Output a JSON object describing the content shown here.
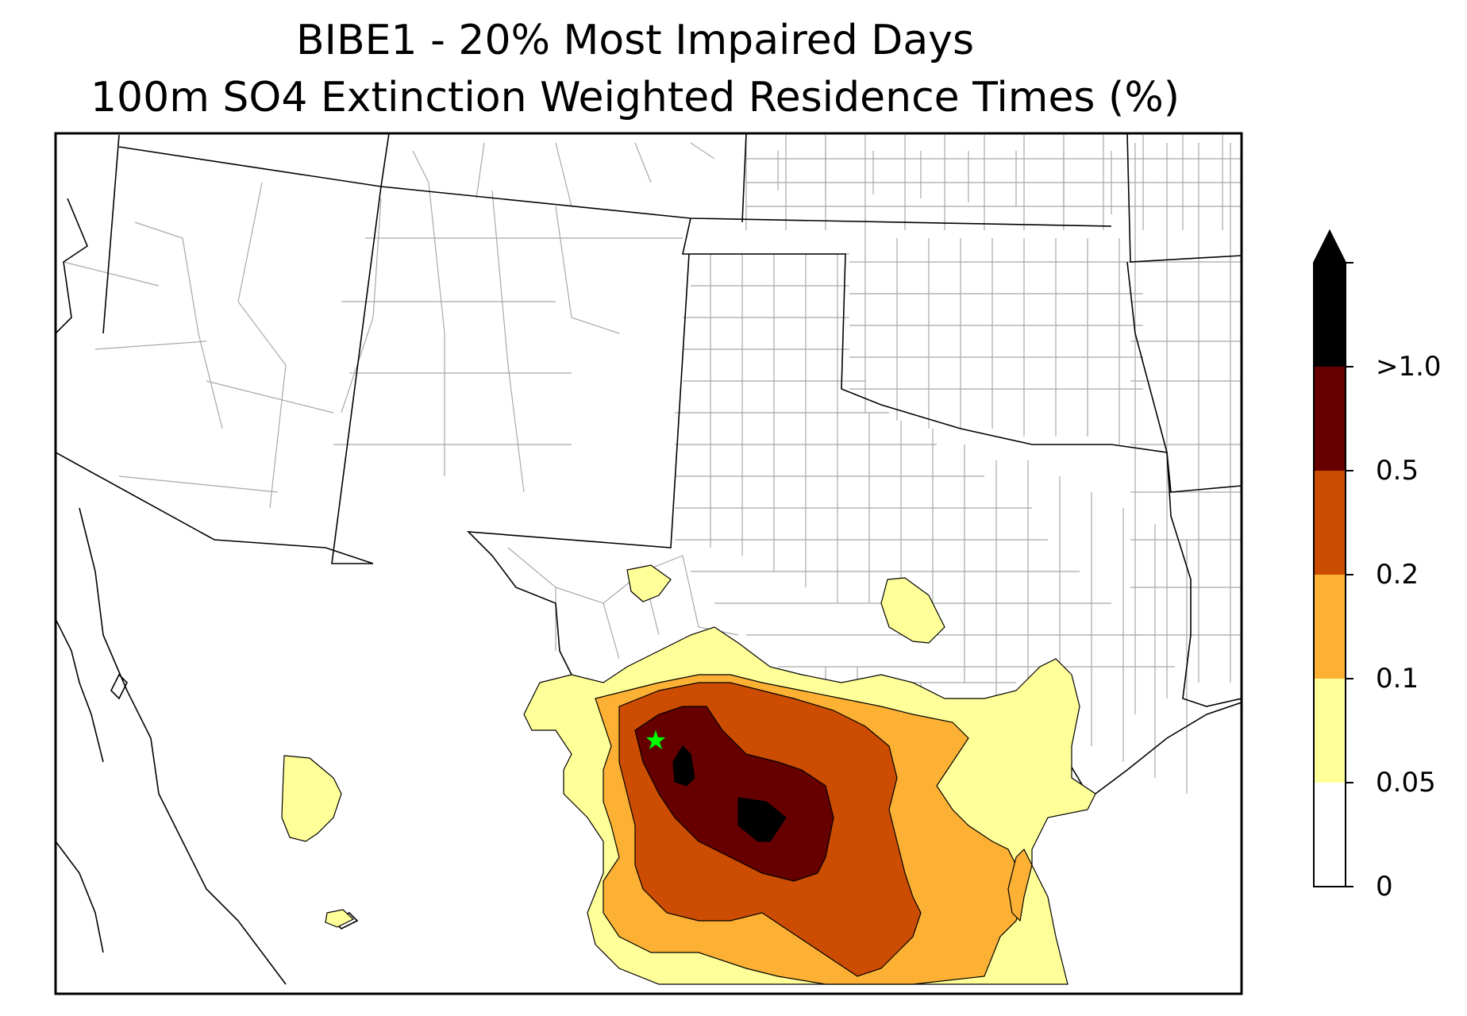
{
  "title": {
    "line1": "BIBE1 - 20% Most Impaired Days",
    "line2": "100m SO4 Extinction Weighted Residence Times (%)"
  },
  "colorbar": {
    "levels": [
      {
        "label": "0",
        "value": 0,
        "color": "#ffffff"
      },
      {
        "label": "0.05",
        "value": 0.05,
        "color": "#ffff99"
      },
      {
        "label": "0.1",
        "value": 0.1,
        "color": "#fcb135"
      },
      {
        "label": "0.2",
        "value": 0.2,
        "color": "#cc4c02"
      },
      {
        "label": "0.5",
        "value": 0.5,
        "color": "#660000"
      },
      {
        "label": ">1.0",
        "value": 1.0,
        "color": "#000000"
      }
    ],
    "extend": "max"
  },
  "map": {
    "region": "South-central United States and northern Mexico",
    "site_marker": {
      "symbol": "star",
      "color": "#00ff00"
    },
    "contour_colors": {
      "level_0_05": "#ffff99",
      "level_0_1": "#fcb135",
      "level_0_2": "#cc4c02",
      "level_0_5": "#660000",
      "level_1_0": "#000000"
    },
    "boundary_colors": {
      "state": "#000000",
      "county": "#a0a0a0"
    }
  }
}
